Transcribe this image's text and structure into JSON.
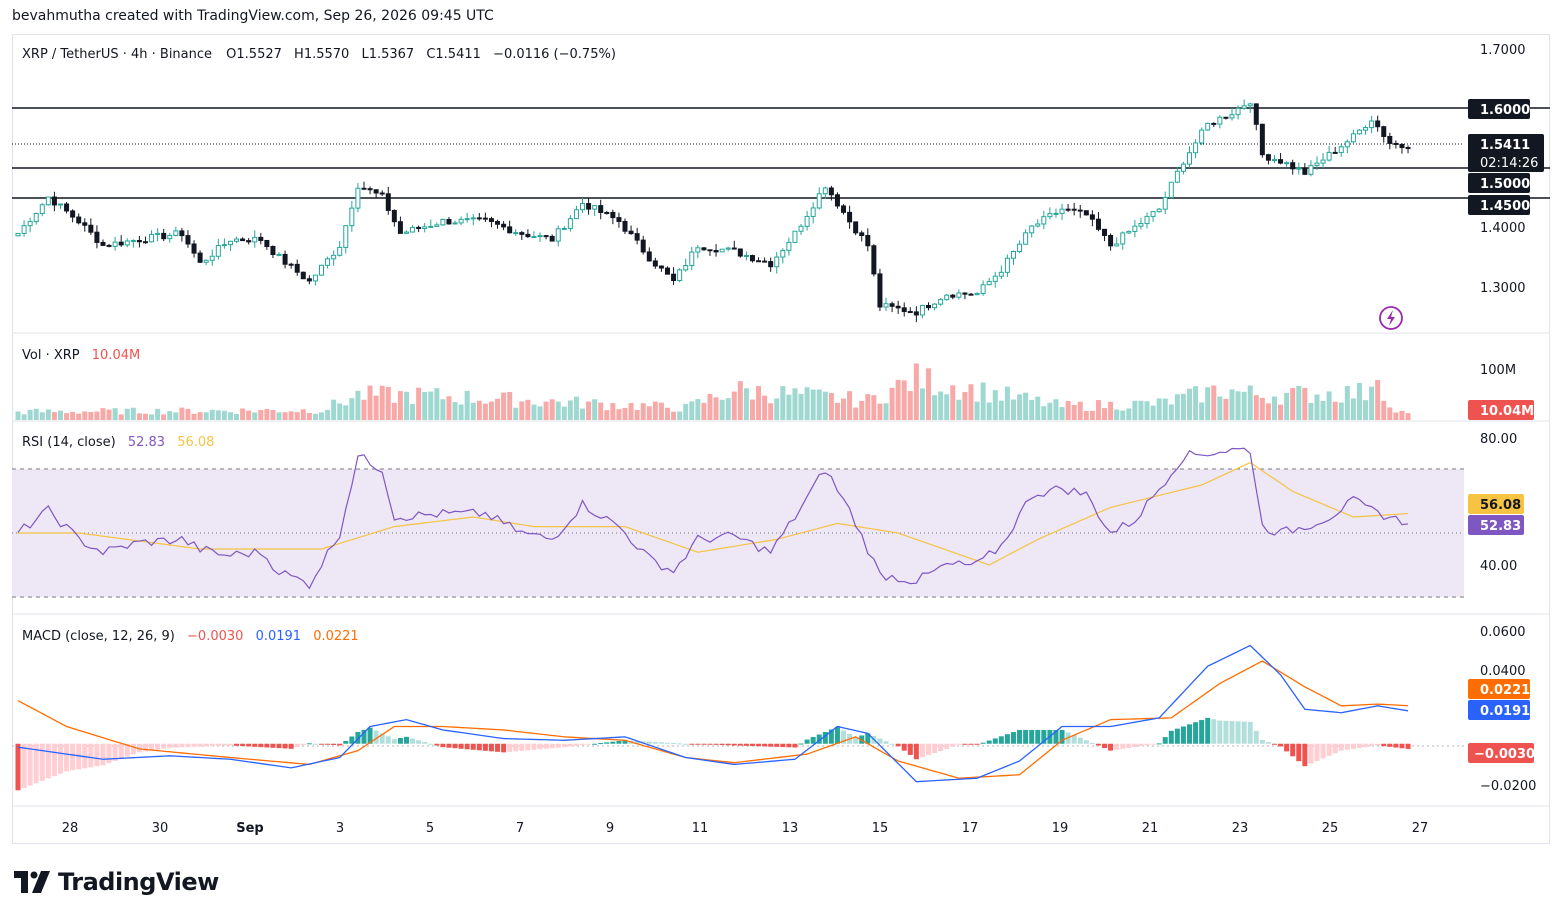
{
  "attribution": "bevahmutha created with TradingView.com, Sep 26, 2026 09:45 UTC",
  "brand": "TradingView",
  "colors": {
    "up": "#26a69a",
    "down": "#ef5350",
    "candle_down_fill": "#131722",
    "rsi": "#7e57c2",
    "rsi_ma": "#f6c343",
    "macd": "#2962ff",
    "signal": "#ff6d00",
    "rsi_band": "#ede7f6"
  },
  "symbol_legend": {
    "pair": "XRP / TetherUS · 4h · Binance",
    "open": "O1.5527",
    "high": "H1.5570",
    "low": "L1.5367",
    "close": "C1.5411",
    "change": "−0.0116 (−0.75%)"
  },
  "price_axis": {
    "ticks": [
      "1.7000",
      "1.4000",
      "1.3000"
    ],
    "ticks_values": [
      1.7,
      1.4,
      1.3
    ]
  },
  "levels": [
    {
      "value": 1.6,
      "label": "1.6000"
    },
    {
      "value": 1.5,
      "label": "1.5000"
    },
    {
      "value": 1.45,
      "label": "1.4500"
    }
  ],
  "last_price": {
    "label": "1.5411",
    "countdown": "02:14:26",
    "value": 1.5411
  },
  "volume_legend": {
    "title": "Vol · XRP",
    "value": "10.04M"
  },
  "volume_axis": {
    "tick": "100M",
    "last": "10.04M"
  },
  "rsi_legend": {
    "title": "RSI (14, close)",
    "rsi": "52.83",
    "ma": "56.08"
  },
  "rsi_axis": {
    "ticks": [
      "80.00",
      "40.00"
    ],
    "rsi_label": "52.83",
    "ma_label": "56.08"
  },
  "macd_legend": {
    "title": "MACD (close, 12, 26, 9)",
    "hist": "−0.0030",
    "macd": "0.0191",
    "signal": "0.0221"
  },
  "macd_axis": {
    "ticks": [
      "0.0600",
      "0.0400",
      "−0.0200"
    ],
    "signal_label": "0.0221",
    "macd_label": "0.0191",
    "hist_label": "−0.0030"
  },
  "time_axis": [
    "28",
    "30",
    "Sep",
    "3",
    "5",
    "7",
    "9",
    "11",
    "13",
    "15",
    "17",
    "19",
    "21",
    "23",
    "25",
    "27"
  ],
  "chart_data": {
    "type": "candlestick",
    "timeframe": "4h",
    "price_range": [
      1.24,
      1.72
    ],
    "close_anchors": [
      [
        0,
        1.4
      ],
      [
        5,
        1.46
      ],
      [
        10,
        1.42
      ],
      [
        14,
        1.38
      ],
      [
        20,
        1.39
      ],
      [
        27,
        1.4
      ],
      [
        30,
        1.35
      ],
      [
        35,
        1.39
      ],
      [
        40,
        1.39
      ],
      [
        43,
        1.36
      ],
      [
        48,
        1.32
      ],
      [
        53,
        1.38
      ],
      [
        56,
        1.48
      ],
      [
        60,
        1.46
      ],
      [
        63,
        1.4
      ],
      [
        70,
        1.42
      ],
      [
        77,
        1.42
      ],
      [
        83,
        1.4
      ],
      [
        88,
        1.39
      ],
      [
        93,
        1.45
      ],
      [
        99,
        1.42
      ],
      [
        104,
        1.36
      ],
      [
        108,
        1.32
      ],
      [
        112,
        1.38
      ],
      [
        118,
        1.37
      ],
      [
        124,
        1.35
      ],
      [
        128,
        1.4
      ],
      [
        133,
        1.48
      ],
      [
        137,
        1.42
      ],
      [
        140,
        1.38
      ],
      [
        142,
        1.28
      ],
      [
        148,
        1.27
      ],
      [
        153,
        1.3
      ],
      [
        158,
        1.3
      ],
      [
        162,
        1.34
      ],
      [
        167,
        1.41
      ],
      [
        172,
        1.44
      ],
      [
        176,
        1.43
      ],
      [
        180,
        1.38
      ],
      [
        184,
        1.41
      ],
      [
        188,
        1.44
      ],
      [
        192,
        1.52
      ],
      [
        196,
        1.58
      ],
      [
        200,
        1.6
      ],
      [
        203,
        1.62
      ],
      [
        205,
        1.53
      ],
      [
        208,
        1.52
      ],
      [
        212,
        1.5
      ],
      [
        216,
        1.53
      ],
      [
        220,
        1.56
      ],
      [
        223,
        1.59
      ],
      [
        226,
        1.55
      ],
      [
        229,
        1.541
      ]
    ],
    "volume_anchors": [
      [
        0,
        15
      ],
      [
        50,
        18
      ],
      [
        56,
        45
      ],
      [
        66,
        45
      ],
      [
        110,
        22
      ],
      [
        118,
        55
      ],
      [
        140,
        35
      ],
      [
        148,
        75
      ],
      [
        172,
        25
      ],
      [
        188,
        30
      ],
      [
        198,
        55
      ],
      [
        205,
        45
      ],
      [
        222,
        50
      ],
      [
        224,
        95
      ],
      [
        226,
        20
      ],
      [
        229,
        10
      ]
    ],
    "rsi_anchors": [
      [
        0,
        50
      ],
      [
        5,
        57
      ],
      [
        10,
        48
      ],
      [
        14,
        44
      ],
      [
        20,
        47
      ],
      [
        27,
        48
      ],
      [
        30,
        45
      ],
      [
        34,
        43
      ],
      [
        40,
        44
      ],
      [
        43,
        38
      ],
      [
        48,
        34
      ],
      [
        53,
        50
      ],
      [
        56,
        74
      ],
      [
        60,
        70
      ],
      [
        62,
        55
      ],
      [
        70,
        56
      ],
      [
        77,
        56
      ],
      [
        83,
        50
      ],
      [
        88,
        48
      ],
      [
        93,
        59
      ],
      [
        99,
        52
      ],
      [
        104,
        42
      ],
      [
        108,
        38
      ],
      [
        112,
        48
      ],
      [
        118,
        49
      ],
      [
        124,
        44
      ],
      [
        128,
        55
      ],
      [
        133,
        70
      ],
      [
        137,
        57
      ],
      [
        140,
        45
      ],
      [
        142,
        37
      ],
      [
        148,
        35
      ],
      [
        153,
        40
      ],
      [
        158,
        40
      ],
      [
        162,
        46
      ],
      [
        167,
        62
      ],
      [
        172,
        64
      ],
      [
        176,
        62
      ],
      [
        180,
        50
      ],
      [
        184,
        54
      ],
      [
        188,
        64
      ],
      [
        192,
        74
      ],
      [
        196,
        75
      ],
      [
        200,
        76
      ],
      [
        203,
        76
      ],
      [
        205,
        52
      ],
      [
        208,
        50
      ],
      [
        212,
        52
      ],
      [
        216,
        55
      ],
      [
        220,
        60
      ],
      [
        223,
        57
      ],
      [
        226,
        55
      ],
      [
        229,
        52.83
      ]
    ],
    "rsi_ma_anchors": [
      [
        0,
        50
      ],
      [
        10,
        50
      ],
      [
        30,
        45
      ],
      [
        50,
        45
      ],
      [
        62,
        52
      ],
      [
        75,
        55
      ],
      [
        85,
        52
      ],
      [
        100,
        52
      ],
      [
        112,
        44
      ],
      [
        125,
        48
      ],
      [
        135,
        53
      ],
      [
        145,
        50
      ],
      [
        160,
        40
      ],
      [
        168,
        48
      ],
      [
        180,
        58
      ],
      [
        195,
        65
      ],
      [
        203,
        72
      ],
      [
        210,
        63
      ],
      [
        220,
        55
      ],
      [
        229,
        56.08
      ]
    ],
    "macd_range": [
      -0.028,
      0.066
    ],
    "macd_anchors": [
      [
        0,
        -0.002
      ],
      [
        8,
        -0.006
      ],
      [
        14,
        -0.009
      ],
      [
        25,
        -0.007
      ],
      [
        35,
        -0.009
      ],
      [
        45,
        -0.014
      ],
      [
        53,
        -0.008
      ],
      [
        58,
        0.01
      ],
      [
        64,
        0.014
      ],
      [
        70,
        0.008
      ],
      [
        80,
        0.003
      ],
      [
        90,
        0.002
      ],
      [
        100,
        0.004
      ],
      [
        110,
        -0.008
      ],
      [
        118,
        -0.012
      ],
      [
        128,
        -0.009
      ],
      [
        135,
        0.01
      ],
      [
        140,
        0.006
      ],
      [
        148,
        -0.022
      ],
      [
        158,
        -0.02
      ],
      [
        165,
        -0.01
      ],
      [
        172,
        0.01
      ],
      [
        180,
        0.01
      ],
      [
        188,
        0.015
      ],
      [
        196,
        0.045
      ],
      [
        203,
        0.057
      ],
      [
        208,
        0.04
      ],
      [
        212,
        0.02
      ],
      [
        218,
        0.018
      ],
      [
        224,
        0.022
      ],
      [
        229,
        0.0191
      ]
    ],
    "signal_anchors": [
      [
        0,
        0.025
      ],
      [
        8,
        0.01
      ],
      [
        20,
        -0.003
      ],
      [
        35,
        -0.008
      ],
      [
        48,
        -0.012
      ],
      [
        56,
        -0.004
      ],
      [
        62,
        0.01
      ],
      [
        70,
        0.01
      ],
      [
        80,
        0.008
      ],
      [
        90,
        0.004
      ],
      [
        100,
        0.002
      ],
      [
        110,
        -0.008
      ],
      [
        118,
        -0.011
      ],
      [
        130,
        -0.006
      ],
      [
        138,
        0.004
      ],
      [
        145,
        -0.01
      ],
      [
        155,
        -0.02
      ],
      [
        165,
        -0.018
      ],
      [
        172,
        0.002
      ],
      [
        180,
        0.014
      ],
      [
        190,
        0.015
      ],
      [
        198,
        0.035
      ],
      [
        205,
        0.048
      ],
      [
        212,
        0.033
      ],
      [
        218,
        0.022
      ],
      [
        224,
        0.023
      ],
      [
        229,
        0.0221
      ]
    ]
  }
}
